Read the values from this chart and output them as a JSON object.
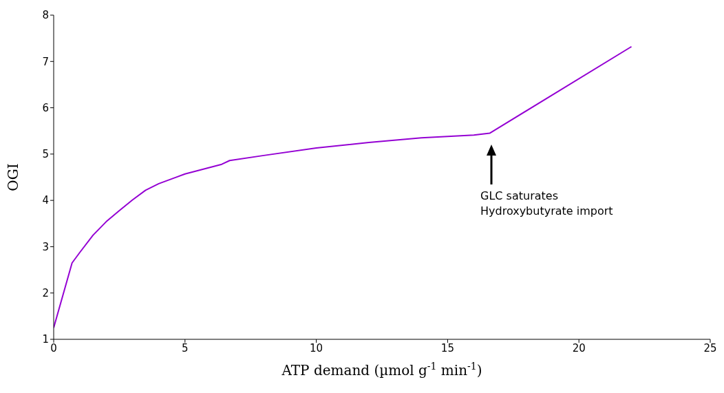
{
  "chart_data": {
    "type": "line",
    "xlabel": "ATP demand (µmol g$^{-1}$ min$^{-1}$)",
    "ylabel": "OGI",
    "x": [
      0,
      0.7,
      1,
      1.5,
      2,
      2.5,
      3,
      3.5,
      4,
      5,
      6,
      6.4,
      6.7,
      8,
      10,
      12,
      14,
      16,
      16.6,
      22
    ],
    "series": [
      {
        "color": "#9400d3",
        "values": [
          1.25,
          2.65,
          2.88,
          3.25,
          3.54,
          3.78,
          4.01,
          4.22,
          4.36,
          4.57,
          4.72,
          4.78,
          4.86,
          4.97,
          5.13,
          5.25,
          5.35,
          5.41,
          5.45,
          7.32
        ]
      }
    ],
    "xlim": [
      0,
      25
    ],
    "xticks": [
      0,
      5,
      10,
      15,
      20,
      25
    ],
    "ylim": [
      1,
      8
    ],
    "yticks": [
      1,
      2,
      3,
      4,
      5,
      6,
      7,
      8
    ],
    "grid": false,
    "legend": false,
    "marker": "none",
    "line_style": "solid",
    "annotations": [
      "GLC saturates\nHydroxybutyrate import"
    ]
  }
}
